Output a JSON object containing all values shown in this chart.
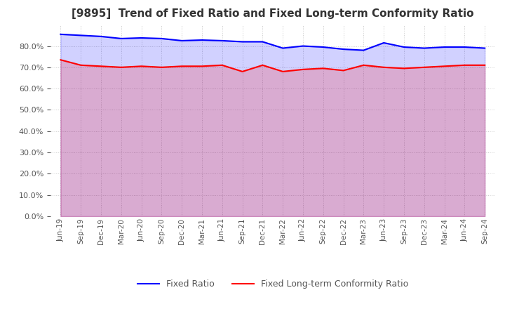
{
  "title": "[9895]  Trend of Fixed Ratio and Fixed Long-term Conformity Ratio",
  "x_labels": [
    "Jun-19",
    "Sep-19",
    "Dec-19",
    "Mar-20",
    "Jun-20",
    "Sep-20",
    "Dec-20",
    "Mar-21",
    "Jun-21",
    "Sep-21",
    "Dec-21",
    "Mar-22",
    "Jun-22",
    "Sep-22",
    "Dec-22",
    "Mar-23",
    "Jun-23",
    "Sep-23",
    "Dec-23",
    "Mar-24",
    "Jun-24",
    "Sep-24"
  ],
  "fixed_ratio": [
    85.5,
    85.0,
    84.5,
    83.5,
    83.8,
    83.5,
    82.5,
    82.8,
    82.5,
    82.0,
    82.0,
    79.0,
    80.0,
    79.5,
    78.5,
    78.0,
    81.5,
    79.5,
    79.0,
    79.5,
    79.5,
    79.0
  ],
  "fixed_lt_ratio": [
    73.5,
    71.0,
    70.5,
    70.0,
    70.5,
    70.0,
    70.5,
    70.5,
    71.0,
    68.0,
    71.0,
    68.0,
    69.0,
    69.5,
    68.5,
    71.0,
    70.0,
    69.5,
    70.0,
    70.5,
    71.0,
    71.0
  ],
  "fixed_ratio_color": "#0000ff",
  "fixed_lt_ratio_color": "#ff0000",
  "ylim": [
    0,
    90
  ],
  "yticks": [
    0,
    10,
    20,
    30,
    40,
    50,
    60,
    70,
    80
  ],
  "grid_color": "#cccccc",
  "background_color": "#ffffff",
  "line_width": 1.5,
  "fill_fixed_ratio_color": "#aaaaff",
  "fill_lt_ratio_color": "#ffaaaa"
}
